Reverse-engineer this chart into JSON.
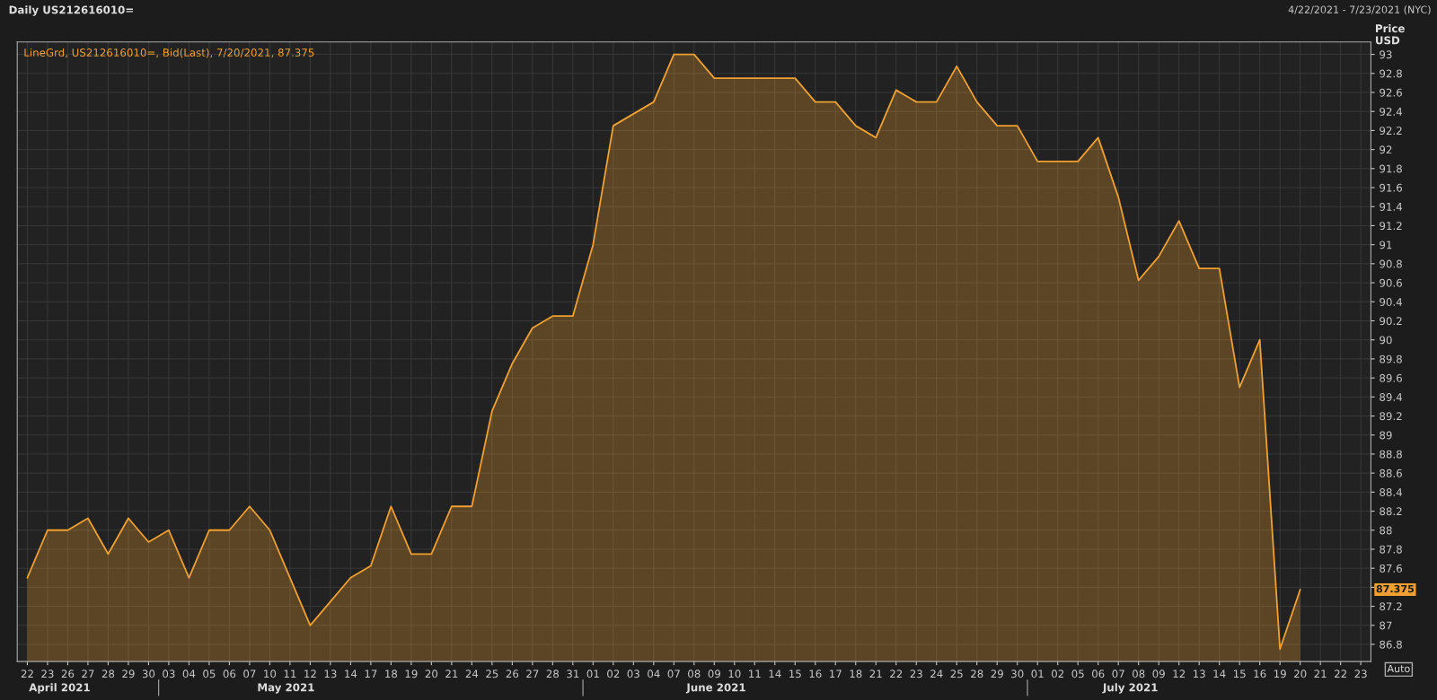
{
  "chart_data": {
    "type": "area",
    "title": "Daily US212616010=",
    "subtitle": "4/22/2021 - 7/23/2021 (NYC)",
    "ylabel": "Price\nUSD",
    "categories": [
      "22",
      "23",
      "26",
      "27",
      "28",
      "29",
      "30",
      "03",
      "04",
      "05",
      "06",
      "07",
      "10",
      "11",
      "12",
      "13",
      "14",
      "17",
      "18",
      "19",
      "20",
      "21",
      "24",
      "25",
      "26",
      "27",
      "28",
      "31",
      "01",
      "02",
      "03",
      "04",
      "07",
      "08",
      "09",
      "10",
      "11",
      "14",
      "15",
      "16",
      "17",
      "18",
      "21",
      "22",
      "23",
      "24",
      "25",
      "28",
      "29",
      "30",
      "01",
      "02",
      "05",
      "06",
      "07",
      "08",
      "09",
      "12",
      "13",
      "14",
      "15",
      "16",
      "19",
      "20",
      "21",
      "22",
      "23"
    ],
    "series": [
      {
        "name": "LineGrd, US212616010=, Bid(Last), 7/20/2021, 87.375",
        "color": "#f0a030",
        "values": [
          87.5,
          88.0,
          88.0,
          88.125,
          87.75,
          88.125,
          87.875,
          88.0,
          87.5,
          88.0,
          88.0,
          88.25,
          88.0,
          87.5,
          87.0,
          87.25,
          87.5,
          87.625,
          88.25,
          87.75,
          87.75,
          88.25,
          88.25,
          89.25,
          89.75,
          90.125,
          90.25,
          90.25,
          91.0,
          92.25,
          92.375,
          92.5,
          93.0,
          93.0,
          92.75,
          92.75,
          92.75,
          92.75,
          92.75,
          92.5,
          92.5,
          92.25,
          92.125,
          92.625,
          92.5,
          92.5,
          92.875,
          92.5,
          92.25,
          92.25,
          91.875,
          91.875,
          91.875,
          92.125,
          91.5,
          90.625,
          90.875,
          91.25,
          90.75,
          90.75,
          89.5,
          90.0,
          86.75,
          87.375,
          null,
          null,
          null
        ]
      }
    ],
    "ylim": [
      86.62,
      93.13
    ],
    "yticks": [
      86.8,
      87,
      87.2,
      {
        "value": 87.4,
        "label": null
      },
      87.6,
      87.8,
      88,
      88.2,
      88.4,
      88.6,
      88.8,
      89,
      89.2,
      89.4,
      89.6,
      89.8,
      90,
      90.2,
      90.4,
      90.6,
      90.8,
      91,
      91.2,
      91.4,
      91.6,
      91.8,
      92,
      92.2,
      92.4,
      92.6,
      92.8,
      93
    ],
    "grid": true,
    "legend": "top left",
    "annotations": [
      "April 2021",
      "May 2021",
      "June 2021",
      "July 2021",
      "Auto",
      "87.375"
    ]
  }
}
